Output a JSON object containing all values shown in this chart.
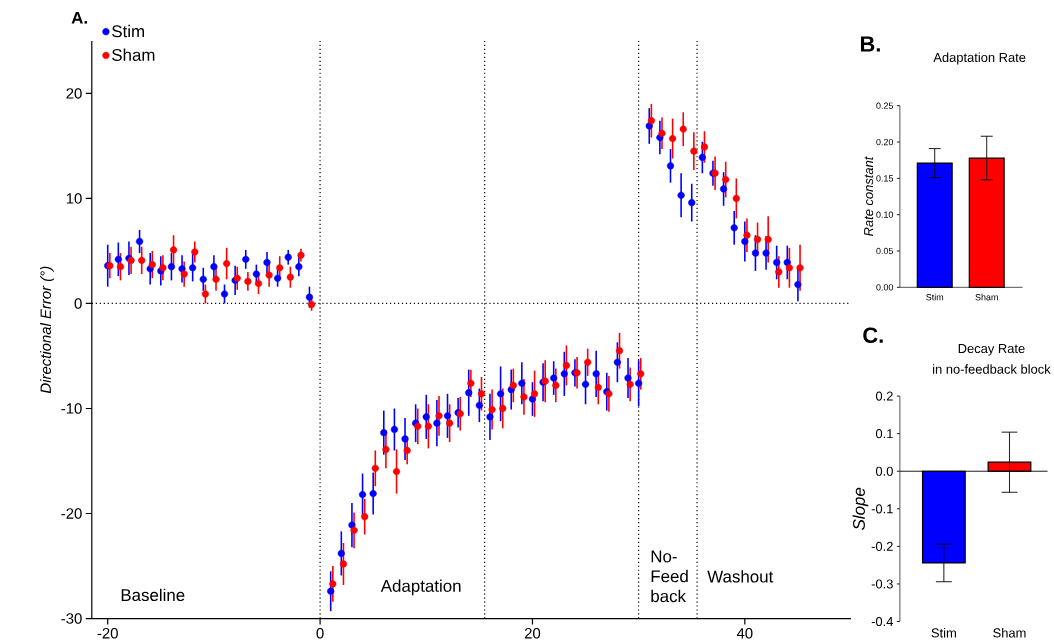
{
  "chart_data": [
    {
      "type": "scatter",
      "ylabel": "Directional Error (°)",
      "xlim": [
        -21.5,
        50
      ],
      "ylim": [
        -30,
        25
      ],
      "xticks": [
        -20,
        0,
        20,
        40
      ],
      "yticks": [
        -30,
        -20,
        -10,
        0,
        10,
        20
      ],
      "marker": "circle",
      "legend": "top left",
      "annotations": [
        "A.",
        "Baseline",
        "Adaptation",
        "No-Feed back",
        "Washout"
      ],
      "ref_lines": [
        {
          "axis": "x",
          "value": 0,
          "line_style": "dotted",
          "color": "#000000"
        },
        {
          "axis": "x",
          "value": 15.5,
          "line_style": "dotted",
          "color": "#000000"
        },
        {
          "axis": "x",
          "value": 30,
          "line_style": "dotted",
          "color": "#000000"
        },
        {
          "axis": "x",
          "value": 35.5,
          "line_style": "dotted",
          "color": "#000000"
        },
        {
          "axis": "y",
          "value": 0,
          "line_style": "dotted",
          "color": "#000000"
        }
      ],
      "series": [
        {
          "name": "Stim",
          "color": "#0000ff",
          "x": [
            -20,
            -19,
            -18,
            -17,
            -16,
            -15,
            -14,
            -13,
            -12,
            -11,
            -10,
            -9,
            -8,
            -7,
            -6,
            -5,
            -4,
            -3,
            -2,
            -1,
            1,
            2,
            3,
            4,
            5,
            6,
            7,
            8,
            9,
            10,
            11,
            12,
            13,
            14,
            15,
            16,
            17,
            18,
            19,
            20,
            21,
            22,
            23,
            24,
            25,
            26,
            27,
            28,
            29,
            30,
            31,
            32,
            33,
            34,
            35,
            36,
            37,
            38,
            39,
            40,
            41,
            42,
            43,
            44,
            45
          ],
          "values": [
            3.6,
            4.2,
            4.3,
            5.9,
            3.3,
            3.1,
            3.5,
            3.3,
            3.4,
            2.3,
            3.5,
            0.9,
            2.2,
            4.2,
            2.8,
            3.9,
            2.4,
            4.4,
            3.5,
            0.6,
            -27.4,
            -23.8,
            -21.1,
            -18.2,
            -18.1,
            -12.3,
            -12.0,
            -12.9,
            -11.4,
            -10.8,
            -11.4,
            -10.7,
            -10.4,
            -8.5,
            -9.7,
            -10.8,
            -8.6,
            -8.2,
            -7.6,
            -9.1,
            -7.5,
            -7.1,
            -6.7,
            -6.6,
            -7.7,
            -6.7,
            -8.4,
            -5.6,
            -7.1,
            -7.6,
            16.9,
            15.8,
            13.1,
            10.3,
            9.6,
            13.9,
            12.4,
            10.9,
            7.2,
            5.9,
            4.8,
            4.8,
            3.9,
            3.9,
            1.8
          ],
          "errors": [
            2.0,
            1.6,
            1.6,
            1.1,
            1.5,
            1.4,
            1.3,
            1.3,
            1.3,
            1.1,
            1.1,
            0.9,
            1.4,
            0.9,
            0.9,
            1.0,
            0.8,
            0.7,
            0.9,
            1.0,
            1.9,
            2.1,
            2.1,
            2.0,
            2.0,
            2.1,
            2.0,
            2.0,
            1.8,
            2.1,
            2.2,
            2.1,
            1.4,
            2.2,
            1.6,
            2.2,
            2.6,
            1.9,
            2.0,
            1.6,
            1.8,
            1.6,
            2.1,
            1.3,
            1.9,
            2.2,
            1.8,
            1.9,
            1.9,
            2.2,
            1.7,
            1.6,
            1.6,
            2.1,
            1.8,
            1.5,
            1.2,
            1.6,
            1.6,
            1.9,
            1.7,
            1.6,
            1.6,
            1.6,
            1.6
          ]
        },
        {
          "name": "Sham",
          "color": "#ff0000",
          "x": [
            -19.8,
            -18.8,
            -17.8,
            -16.8,
            -15.8,
            -14.8,
            -13.8,
            -12.8,
            -11.8,
            -10.8,
            -9.8,
            -8.8,
            -7.8,
            -6.8,
            -5.8,
            -4.8,
            -3.8,
            -2.8,
            -1.8,
            -0.8,
            1.2,
            2.2,
            3.2,
            4.2,
            5.2,
            6.2,
            7.2,
            8.2,
            9.2,
            10.2,
            11.2,
            12.2,
            13.2,
            14.2,
            15.2,
            16.2,
            17.2,
            18.2,
            19.2,
            20.2,
            21.2,
            22.2,
            23.2,
            24.2,
            25.2,
            26.2,
            27.2,
            28.2,
            29.2,
            30.2,
            31.2,
            32.2,
            33.2,
            34.2,
            35.2,
            36.2,
            37.2,
            38.2,
            39.2,
            40.2,
            41.2,
            42.2,
            43.2,
            44.2,
            45.2
          ],
          "values": [
            3.6,
            3.5,
            4.1,
            4.1,
            3.7,
            3.4,
            5.1,
            2.8,
            4.9,
            0.9,
            2.3,
            3.8,
            2.4,
            2.1,
            1.9,
            2.7,
            3.4,
            2.5,
            4.6,
            -0.1,
            -26.7,
            -24.8,
            -21.6,
            -20.3,
            -15.7,
            -13.9,
            -16.0,
            -14.0,
            -11.7,
            -11.7,
            -10.7,
            -11.4,
            -10.5,
            -7.6,
            -8.6,
            -10.1,
            -10.0,
            -7.8,
            -8.9,
            -8.6,
            -7.4,
            -7.8,
            -5.9,
            -6.6,
            -5.6,
            -8.0,
            -8.6,
            -4.5,
            -7.7,
            -6.7,
            17.4,
            16.2,
            15.7,
            16.6,
            14.5,
            14.9,
            12.4,
            11.8,
            10.0,
            6.5,
            6.1,
            6.1,
            3.0,
            3.4,
            3.4
          ],
          "errors": [
            1.2,
            1.3,
            1.3,
            1.3,
            1.3,
            1.2,
            1.4,
            1.2,
            1.0,
            0.9,
            1.1,
            1.5,
            1.1,
            0.9,
            1.0,
            1.1,
            1.1,
            1.0,
            0.6,
            0.6,
            1.7,
            2.0,
            1.7,
            1.7,
            1.7,
            1.8,
            2.1,
            1.3,
            1.7,
            2.1,
            1.9,
            1.8,
            1.6,
            1.3,
            1.6,
            1.9,
            1.9,
            1.6,
            1.7,
            2.2,
            2.0,
            1.6,
            1.9,
            1.5,
            1.3,
            1.6,
            1.7,
            1.7,
            1.6,
            1.5,
            1.6,
            1.5,
            1.9,
            1.6,
            1.8,
            1.5,
            1.6,
            1.7,
            1.9,
            1.6,
            1.6,
            2.2,
            1.5,
            1.9,
            2.2
          ]
        }
      ]
    },
    {
      "type": "bar",
      "title": "Adaptation Rate",
      "ylabel": "Rate constant",
      "annotations": [
        "B."
      ],
      "categories": [
        "Stim",
        "Sham"
      ],
      "values": [
        0.171,
        0.178
      ],
      "errors": [
        0.02,
        0.03
      ],
      "colors": [
        "#0000ff",
        "#ff0000"
      ],
      "ylim": [
        0,
        0.25
      ],
      "yticks": [
        {
          "value": 0,
          "label": "0.00"
        },
        0.05,
        {
          "value": 0.1,
          "label": "0.10"
        },
        0.15,
        {
          "value": 0.2,
          "label": "0.20"
        },
        0.25
      ]
    },
    {
      "type": "bar",
      "title": "Decay Rate",
      "subtitle": "in no-feedback block",
      "ylabel": "Slope",
      "annotations": [
        "C."
      ],
      "categories": [
        "Stim",
        "Sham"
      ],
      "values": [
        -0.244,
        0.024
      ],
      "errors": [
        0.05,
        0.08
      ],
      "colors": [
        "#0000ff",
        "#ff0000"
      ],
      "ylim": [
        -0.4,
        0.2
      ],
      "yticks": [
        -0.4,
        -0.3,
        -0.2,
        -0.1,
        {
          "value": 0,
          "label": "0.0"
        },
        0.1,
        0.2
      ],
      "ref_lines": [
        {
          "axis": "y",
          "value": 0,
          "line_style": "solid",
          "color": "#000000"
        }
      ]
    }
  ]
}
